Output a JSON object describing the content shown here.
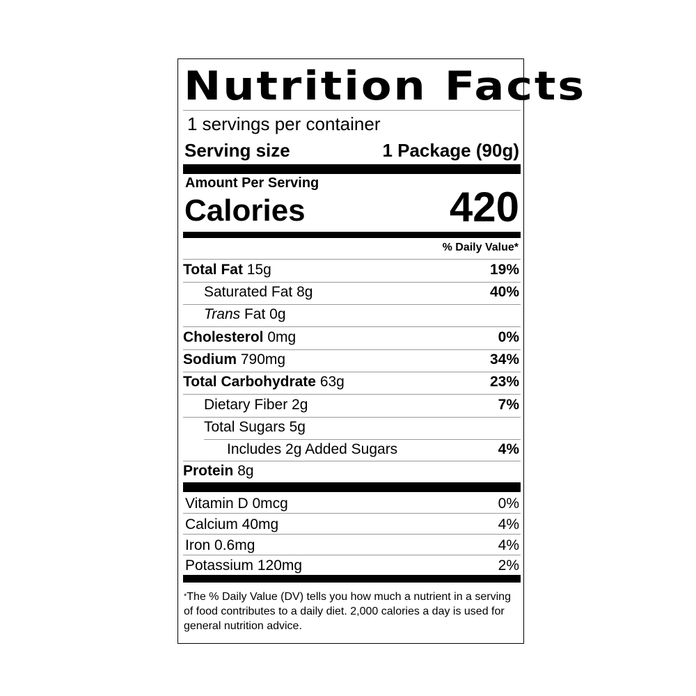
{
  "title": "Nutrition Facts",
  "servings_per_container": "1 servings per container",
  "serving_size": {
    "label": "Serving size",
    "value": "1 Package (90g)"
  },
  "amount_per_serving": "Amount Per Serving",
  "calories": {
    "label": "Calories",
    "value": "420"
  },
  "daily_value_header": "% Daily Value*",
  "nutrients": [
    {
      "name": "Total Fat",
      "amount": "15g",
      "dv": "19%"
    },
    {
      "name": "Saturated Fat",
      "amount": "8g",
      "dv": "40%"
    },
    {
      "name": "Trans",
      "name2": "Fat",
      "amount": "0g",
      "dv": ""
    },
    {
      "name": "Cholesterol",
      "amount": "0mg",
      "dv": "0%"
    },
    {
      "name": "Sodium",
      "amount": "790mg",
      "dv": "34%"
    },
    {
      "name": "Total Carbohydrate",
      "amount": "63g",
      "dv": "23%"
    },
    {
      "name": "Dietary Fiber",
      "amount": "2g",
      "dv": "7%"
    },
    {
      "name": "Total Sugars",
      "amount": "5g",
      "dv": ""
    },
    {
      "name": "Includes 2g Added Sugars",
      "amount": "",
      "dv": "4%"
    },
    {
      "name": "Protein",
      "amount": "8g",
      "dv": ""
    }
  ],
  "vitamins": [
    {
      "name": "Vitamin D 0mcg",
      "dv": "0%"
    },
    {
      "name": "Calcium 40mg",
      "dv": "4%"
    },
    {
      "name": "Iron 0.6mg",
      "dv": "4%"
    },
    {
      "name": "Potassium 120mg",
      "dv": "2%"
    }
  ],
  "footnote": {
    "star": "*",
    "text": "The % Daily Value (DV) tells you how much a nutrient in a serving of food contributes to a daily diet. 2,000 calories a day is used for general nutrition advice."
  }
}
